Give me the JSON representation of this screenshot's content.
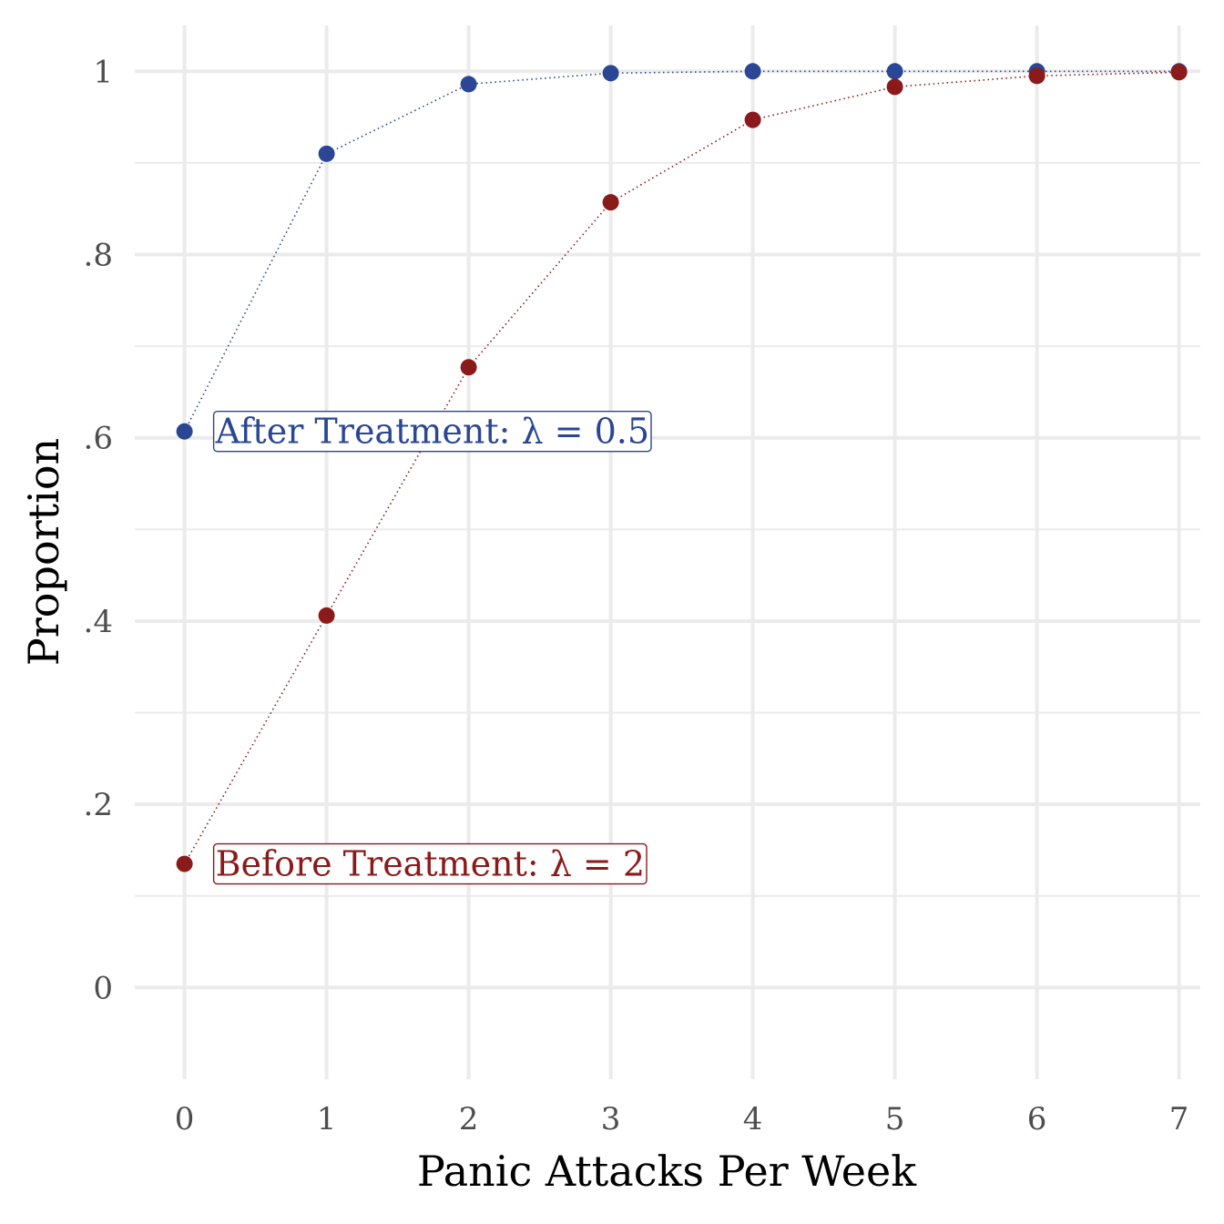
{
  "chart_data": {
    "type": "line",
    "xlabel": "Panic Attacks Per Week",
    "ylabel": "Proportion",
    "xlim": [
      -0.35,
      7.15
    ],
    "ylim": [
      -0.1,
      1.05
    ],
    "x_ticks": [
      0,
      1,
      2,
      3,
      4,
      5,
      6,
      7
    ],
    "x_tick_labels": [
      "0",
      "1",
      "2",
      "3",
      "4",
      "5",
      "6",
      "7"
    ],
    "y_ticks": [
      0,
      0.2,
      0.4,
      0.6,
      0.8,
      1
    ],
    "y_tick_labels": [
      "0",
      ".2",
      ".4",
      ".6",
      ".8",
      "1"
    ],
    "y_minor_ticks": [
      0.1,
      0.3,
      0.5,
      0.7,
      0.9
    ],
    "grid": true,
    "x": [
      0,
      1,
      2,
      3,
      4,
      5,
      6,
      7
    ],
    "series": [
      {
        "name": "After Treatment: λ = 0.5",
        "color": "#2a4694",
        "values": [
          0.607,
          0.91,
          0.986,
          0.998,
          1.0,
          1.0,
          1.0,
          1.0
        ],
        "label_at_x": 0
      },
      {
        "name": "Before Treatment: λ = 2",
        "color": "#8b1a1a",
        "values": [
          0.135,
          0.406,
          0.677,
          0.857,
          0.947,
          0.983,
          0.995,
          0.999
        ],
        "label_at_x": 0
      }
    ]
  }
}
